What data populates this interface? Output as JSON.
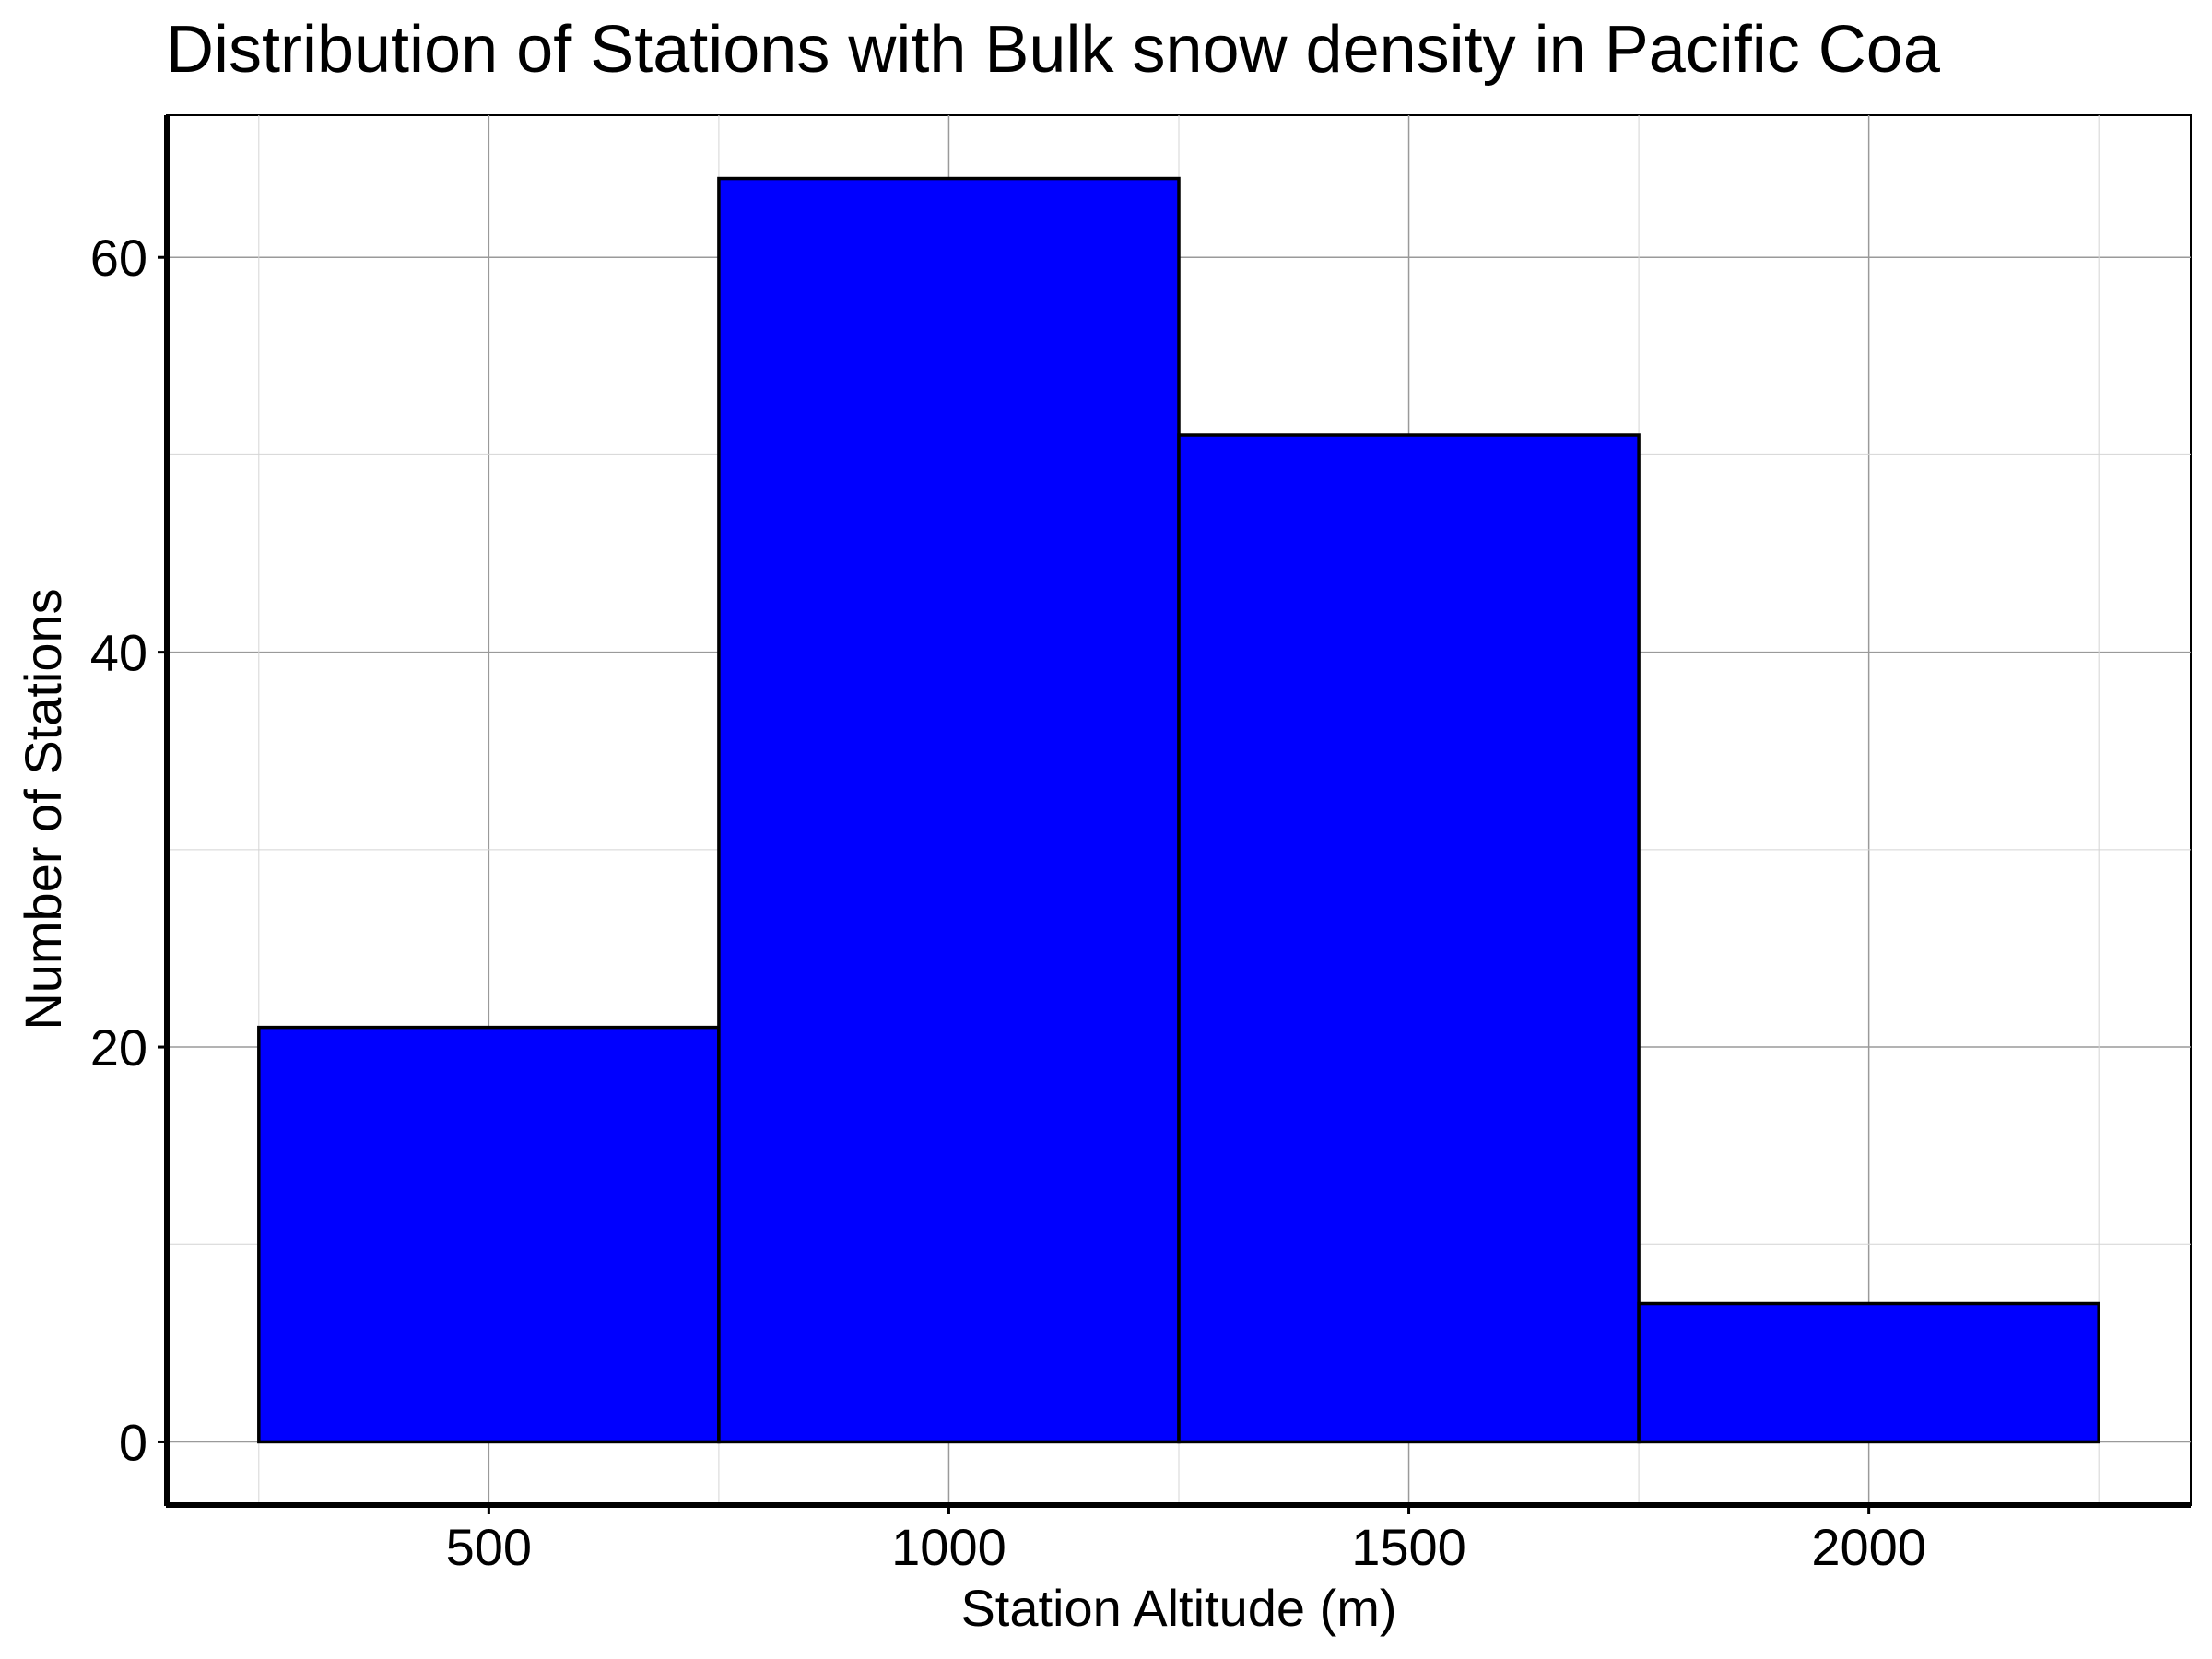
{
  "chart_data": {
    "type": "bar",
    "title": "Distribution of Stations with Bulk snow density in Pacific Coa",
    "xlabel": "Station Altitude (m)",
    "ylabel": "Number of Stations",
    "bins": [
      {
        "x0": 250,
        "x1": 750,
        "count": 21
      },
      {
        "x0": 750,
        "x1": 1250,
        "count": 64
      },
      {
        "x0": 1250,
        "x1": 1750,
        "count": 51
      },
      {
        "x0": 1750,
        "x1": 2250,
        "count": 7
      }
    ],
    "xticks": [
      {
        "value": 500,
        "label": "500"
      },
      {
        "value": 1000,
        "label": "1000"
      },
      {
        "value": 1500,
        "label": "1500"
      },
      {
        "value": 2000,
        "label": "2000"
      }
    ],
    "yticks": [
      {
        "value": 0,
        "label": "0"
      },
      {
        "value": 20,
        "label": "20"
      },
      {
        "value": 40,
        "label": "40"
      },
      {
        "value": 60,
        "label": "60"
      }
    ],
    "x_minor_gridlines": [
      250,
      750,
      1250,
      1750,
      2250
    ],
    "y_minor_gridlines": [
      10,
      30,
      50
    ],
    "xlim": [
      150,
      2350
    ],
    "ylim": [
      -3.2,
      67.2
    ],
    "grid": true,
    "bar_color": "#0000ff",
    "edge_color": "#000000"
  }
}
